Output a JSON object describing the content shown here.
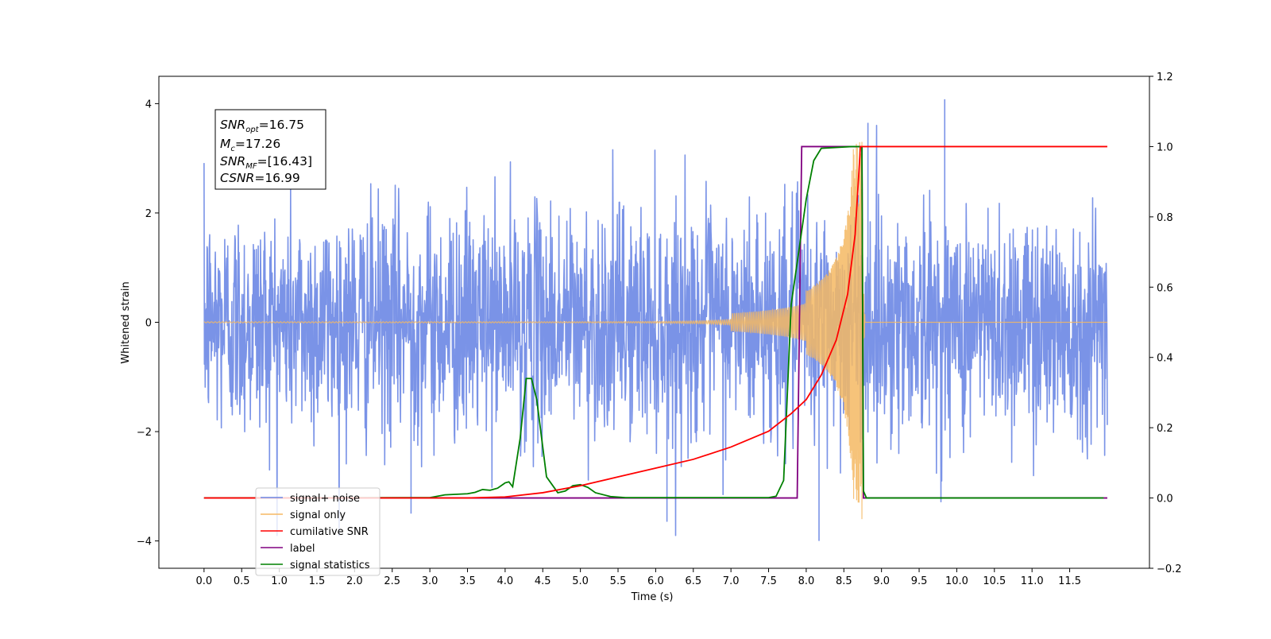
{
  "chart_data": {
    "type": "line",
    "xlabel": "Time (s)",
    "ylabel": "Whitened strain",
    "xlim": [
      -0.6,
      12.56
    ],
    "ylim": [
      -4.5,
      4.5
    ],
    "y2lim": [
      -0.2,
      1.2
    ],
    "x_ticks": [
      "0.0",
      "0.5",
      "1.0",
      "1.5",
      "2.0",
      "2.5",
      "3.0",
      "3.5",
      "4.0",
      "4.5",
      "5.0",
      "5.5",
      "6.0",
      "6.5",
      "7.0",
      "7.5",
      "8.0",
      "8.5",
      "9.0",
      "9.5",
      "10.0",
      "10.5",
      "11.0",
      "11.5"
    ],
    "y_ticks": [
      "−4",
      "−2",
      "0",
      "2",
      "4"
    ],
    "y2_ticks": [
      "−0.2",
      "0.0",
      "0.2",
      "0.4",
      "0.6",
      "0.8",
      "1.0",
      "1.2"
    ],
    "grid": false,
    "legend_placement": "lower-left",
    "info_box": {
      "snr_opt_value": "=16.75",
      "mc_value": "=17.26",
      "snr_mf_value": "=[16.43]",
      "csnr_value": "=16.99"
    },
    "series": [
      {
        "name": "signal+ noise",
        "axis": "left",
        "color": "#6b87e4",
        "description_points": {
          "t_start": 0.0,
          "t_end": 12.0,
          "typical_amplitude": 1.7,
          "peak_max": 4.08,
          "peak_min": -4.0
        }
      },
      {
        "name": "signal only",
        "axis": "left",
        "color": "#f5b963",
        "chirp": {
          "t_start": 0.0,
          "t_merger": 8.74,
          "amp_at_t7": 0.05,
          "amp_at_t8": 0.35,
          "amp_at_t8_6": 2.0,
          "peak": 3.3,
          "trough": -3.6
        }
      },
      {
        "name": "cumilative SNR",
        "axis": "right",
        "color": "#ff0000",
        "points": [
          [
            0,
            0
          ],
          [
            3,
            0
          ],
          [
            3.5,
            0
          ],
          [
            4.0,
            0.003
          ],
          [
            4.5,
            0.015
          ],
          [
            5.0,
            0.035
          ],
          [
            5.5,
            0.06
          ],
          [
            6.0,
            0.085
          ],
          [
            6.5,
            0.11
          ],
          [
            7.0,
            0.145
          ],
          [
            7.5,
            0.19
          ],
          [
            7.8,
            0.24
          ],
          [
            8.0,
            0.28
          ],
          [
            8.2,
            0.35
          ],
          [
            8.4,
            0.45
          ],
          [
            8.55,
            0.58
          ],
          [
            8.65,
            0.75
          ],
          [
            8.72,
            1.0
          ],
          [
            12.0,
            1.0
          ]
        ]
      },
      {
        "name": "label",
        "axis": "right",
        "color": "#800080",
        "points": [
          [
            0,
            0
          ],
          [
            7.88,
            0
          ],
          [
            7.94,
            1.0
          ],
          [
            8.74,
            1.0
          ],
          [
            8.76,
            0.0
          ],
          [
            12.0,
            0.0
          ]
        ]
      },
      {
        "name": "signal statistics",
        "axis": "right",
        "color": "#008000",
        "points": [
          [
            0,
            0
          ],
          [
            3.0,
            0.001
          ],
          [
            3.2,
            0.009
          ],
          [
            3.5,
            0.012
          ],
          [
            3.6,
            0.016
          ],
          [
            3.7,
            0.024
          ],
          [
            3.8,
            0.022
          ],
          [
            3.9,
            0.028
          ],
          [
            4.0,
            0.043
          ],
          [
            4.05,
            0.046
          ],
          [
            4.1,
            0.032
          ],
          [
            4.2,
            0.17
          ],
          [
            4.28,
            0.34
          ],
          [
            4.35,
            0.34
          ],
          [
            4.42,
            0.28
          ],
          [
            4.55,
            0.06
          ],
          [
            4.7,
            0.015
          ],
          [
            4.8,
            0.02
          ],
          [
            4.9,
            0.035
          ],
          [
            5.0,
            0.038
          ],
          [
            5.1,
            0.03
          ],
          [
            5.2,
            0.015
          ],
          [
            5.4,
            0.004
          ],
          [
            5.6,
            0.001
          ],
          [
            7.5,
            0.001
          ],
          [
            7.6,
            0.005
          ],
          [
            7.7,
            0.05
          ],
          [
            7.8,
            0.55
          ],
          [
            7.9,
            0.7
          ],
          [
            8.0,
            0.85
          ],
          [
            8.1,
            0.96
          ],
          [
            8.2,
            0.995
          ],
          [
            8.6,
            1.0
          ],
          [
            8.74,
            1.0
          ],
          [
            8.76,
            0.02
          ],
          [
            8.8,
            0.0
          ],
          [
            11.95,
            0.0
          ]
        ]
      }
    ]
  }
}
